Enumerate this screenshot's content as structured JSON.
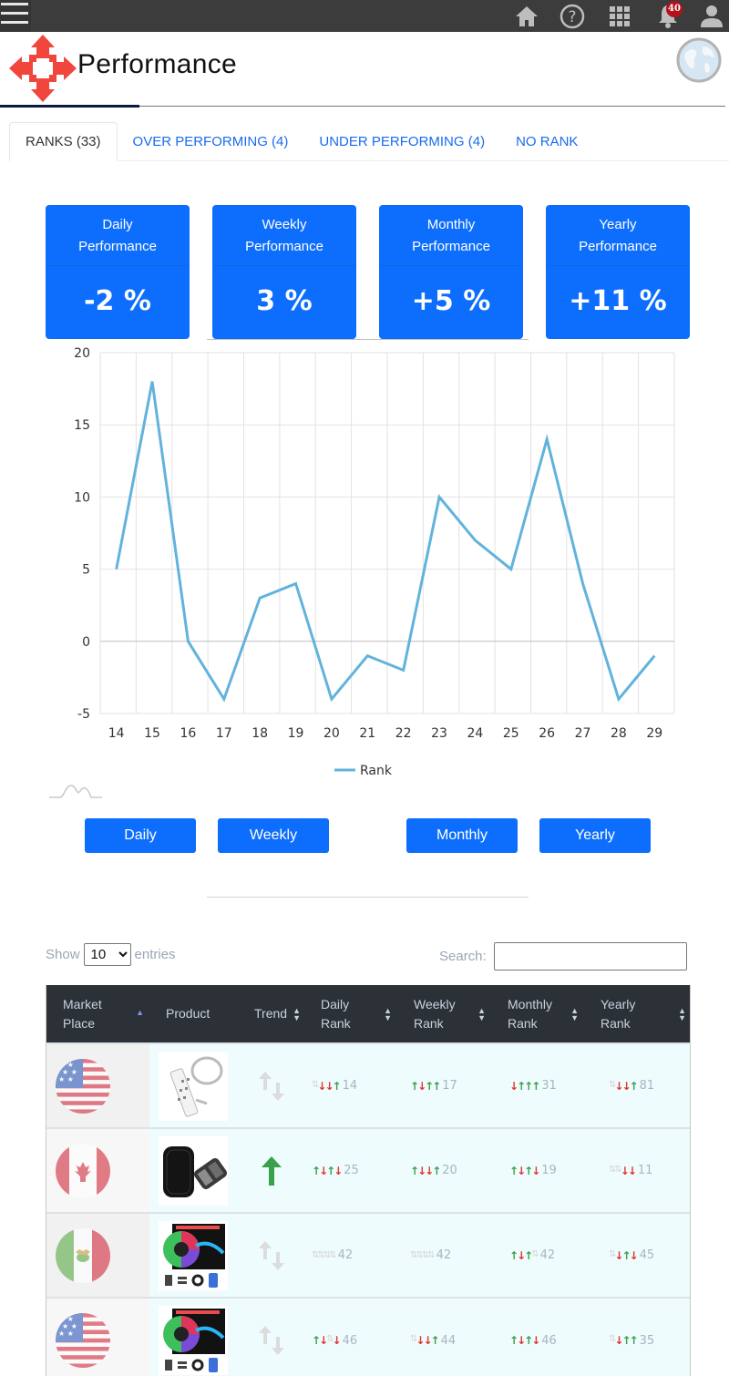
{
  "topbar": {
    "icons": [
      "menu-icon",
      "home-icon",
      "help-icon",
      "apps-grid-icon",
      "bell-icon",
      "user-icon"
    ],
    "notification_count": "40"
  },
  "header": {
    "title": "Performance",
    "logo": "four-way-arrow-logo",
    "globe_icon": "globe-icon"
  },
  "tabs": [
    {
      "label": "RANKS (33)",
      "active": true
    },
    {
      "label": "OVER PERFORMING (4)",
      "active": false
    },
    {
      "label": "UNDER PERFORMING (4)",
      "active": false
    },
    {
      "label": "NO RANK",
      "active": false
    }
  ],
  "cards": [
    {
      "line1": "Daily",
      "line2": "Performance",
      "value": "-2 %"
    },
    {
      "line1": "Weekly",
      "line2": "Performance",
      "value": "3 %"
    },
    {
      "line1": "Monthly",
      "line2": "Performance",
      "value": "+5 %"
    },
    {
      "line1": "Yearly",
      "line2": "Performance",
      "value": "+11 %"
    }
  ],
  "chart_data": {
    "type": "line",
    "title": "",
    "xlabel": "",
    "ylabel": "",
    "x": [
      14,
      15,
      16,
      17,
      18,
      19,
      20,
      21,
      22,
      23,
      24,
      25,
      26,
      27,
      28,
      29
    ],
    "series": [
      {
        "name": "Rank",
        "color": "#62b3dc",
        "values": [
          5,
          18,
          0,
          -4,
          3,
          4,
          -4,
          -1,
          -2,
          10,
          7,
          5,
          14,
          4,
          -4,
          -1
        ]
      }
    ],
    "yticks": [
      20,
      15,
      10,
      5,
      0,
      -5
    ],
    "ylim": [
      -5,
      20
    ],
    "grid": true,
    "legend_position": "bottom"
  },
  "period_buttons": [
    "Daily",
    "Weekly",
    "Monthly",
    "Yearly"
  ],
  "table_controls": {
    "show_label": "Show",
    "entries_value": "10",
    "entries_label": "entries",
    "search_label": "Search:",
    "search_value": ""
  },
  "table": {
    "columns": [
      {
        "line1": "Market",
        "line2": "Place",
        "sort": "asc"
      },
      {
        "line1": "Product",
        "line2": "",
        "sort": "none"
      },
      {
        "line1": "Trend",
        "line2": "",
        "sort": "both"
      },
      {
        "line1": "Daily",
        "line2": "Rank",
        "sort": "both"
      },
      {
        "line1": "Weekly",
        "line2": "Rank",
        "sort": "both"
      },
      {
        "line1": "Monthly",
        "line2": "Rank",
        "sort": "both"
      },
      {
        "line1": "Yearly",
        "line2": "Rank",
        "sort": "both"
      }
    ],
    "rows": [
      {
        "market": "US",
        "product": "power-strip",
        "trend": "neutral",
        "daily": {
          "arrows": [
            "neutral",
            "down",
            "down",
            "up"
          ],
          "value": "14"
        },
        "weekly": {
          "arrows": [
            "up",
            "down",
            "up",
            "up"
          ],
          "value": "17"
        },
        "monthly": {
          "arrows": [
            "down",
            "up",
            "up",
            "up"
          ],
          "value": "31"
        },
        "yearly": {
          "arrows": [
            "neutral",
            "down",
            "down",
            "up"
          ],
          "value": "81"
        }
      },
      {
        "market": "CA",
        "product": "electronics-case",
        "trend": "up",
        "daily": {
          "arrows": [
            "up",
            "down",
            "up",
            "down"
          ],
          "value": "25"
        },
        "weekly": {
          "arrows": [
            "up",
            "down",
            "down",
            "up"
          ],
          "value": "20"
        },
        "monthly": {
          "arrows": [
            "up",
            "down",
            "up",
            "down"
          ],
          "value": "19"
        },
        "yearly": {
          "arrows": [
            "neutral",
            "neutral",
            "down",
            "down"
          ],
          "value": "11"
        }
      },
      {
        "market": "MX",
        "product": "led-strip-lights",
        "trend": "neutral",
        "daily": {
          "arrows": [
            "neutral",
            "neutral",
            "neutral",
            "neutral"
          ],
          "value": "42"
        },
        "weekly": {
          "arrows": [
            "neutral",
            "neutral",
            "neutral",
            "neutral"
          ],
          "value": "42"
        },
        "monthly": {
          "arrows": [
            "up",
            "down",
            "up",
            "neutral"
          ],
          "value": "42"
        },
        "yearly": {
          "arrows": [
            "neutral",
            "down",
            "up",
            "down"
          ],
          "value": "45"
        }
      },
      {
        "market": "US",
        "product": "led-strip-lights",
        "trend": "neutral",
        "daily": {
          "arrows": [
            "up",
            "down",
            "neutral",
            "down"
          ],
          "value": "46"
        },
        "weekly": {
          "arrows": [
            "neutral",
            "down",
            "down",
            "up"
          ],
          "value": "44"
        },
        "monthly": {
          "arrows": [
            "up",
            "down",
            "up",
            "down"
          ],
          "value": "46"
        },
        "yearly": {
          "arrows": [
            "neutral",
            "down",
            "up",
            "up"
          ],
          "value": "35"
        }
      }
    ]
  },
  "colors": {
    "primary": "#0d6efd",
    "topbar": "#3c3c3c",
    "table_header": "#2c3138",
    "line": "#62b3dc",
    "up": "#3aa04a",
    "down": "#e3342f",
    "badge": "#b3111b",
    "logo": "#f0463c"
  }
}
